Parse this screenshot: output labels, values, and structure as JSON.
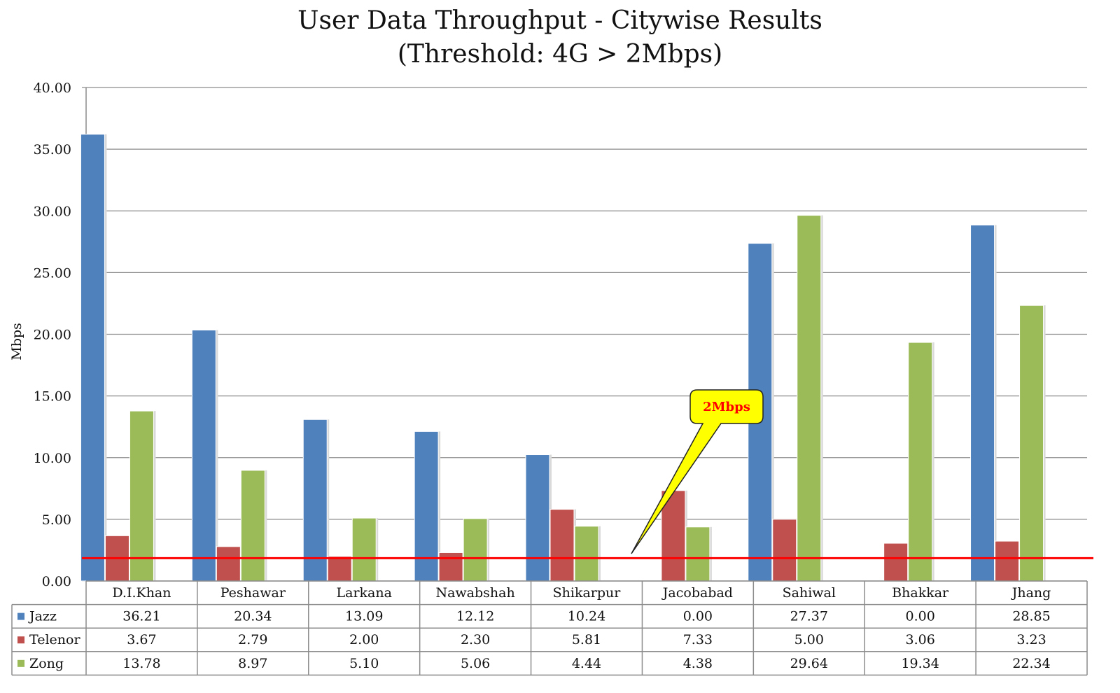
{
  "chart_data": {
    "type": "bar",
    "title": "User Data Throughput - Citywise Results",
    "subtitle": "(Threshold: 4G > 2Mbps)",
    "xlabel": "",
    "ylabel": "Mbps",
    "ylim": [
      0,
      40
    ],
    "yticks": [
      "0.00",
      "5.00",
      "10.00",
      "15.00",
      "20.00",
      "25.00",
      "30.00",
      "35.00",
      "40.00"
    ],
    "grid": true,
    "categories": [
      "D.I.Khan",
      "Peshawar",
      "Larkana",
      "Nawabshah",
      "Shikarpur",
      "Jacobabad",
      "Sahiwal",
      "Bhakkar",
      "Jhang"
    ],
    "series": [
      {
        "name": "Jazz",
        "color": "#4f81bd",
        "values": [
          36.21,
          20.34,
          13.09,
          12.12,
          10.24,
          0.0,
          27.37,
          0.0,
          28.85
        ],
        "labels": [
          "36.21",
          "20.34",
          "13.09",
          "12.12",
          "10.24",
          "0.00",
          "27.37",
          "0.00",
          "28.85"
        ]
      },
      {
        "name": "Telenor",
        "color": "#c0504d",
        "values": [
          3.67,
          2.79,
          2.0,
          2.3,
          5.81,
          7.33,
          5.0,
          3.06,
          3.23
        ],
        "labels": [
          "3.67",
          "2.79",
          "2.00",
          "2.30",
          "5.81",
          "7.33",
          "5.00",
          "3.06",
          "3.23"
        ]
      },
      {
        "name": "Zong",
        "color": "#9bbb59",
        "values": [
          13.78,
          8.97,
          5.1,
          5.06,
          4.44,
          4.38,
          29.64,
          19.34,
          22.34
        ],
        "labels": [
          "13.78",
          "8.97",
          "5.10",
          "5.06",
          "4.44",
          "4.38",
          "29.64",
          "19.34",
          "22.34"
        ]
      }
    ],
    "threshold": {
      "value": 1.85,
      "color": "#ff0000"
    },
    "callout": {
      "text": "2Mbps",
      "fill": "#ffff00",
      "text_color": "#ff0000"
    },
    "legend": "data-table"
  }
}
